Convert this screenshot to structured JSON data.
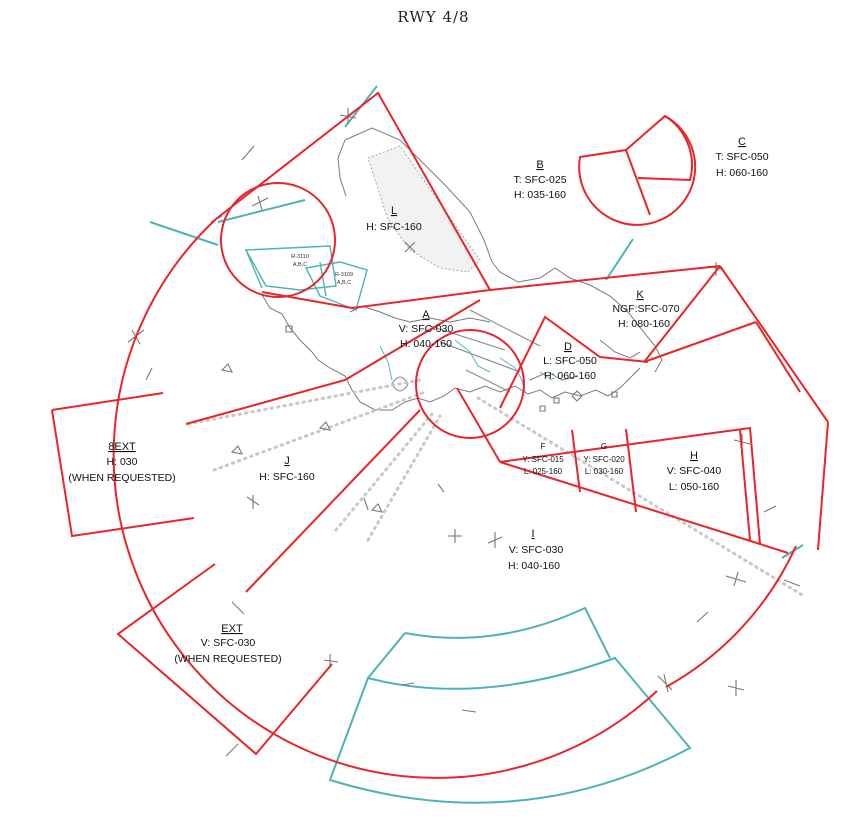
{
  "title": "RWY 4/8",
  "sectors": {
    "A": {
      "id": "A",
      "line1": "V: SFC-030",
      "line2": "H: 040-160"
    },
    "B": {
      "id": "B",
      "line1": "T: SFC-025",
      "line2": "H: 035-160"
    },
    "C": {
      "id": "C",
      "line1": "T: SFC-050",
      "line2": "H: 060-160"
    },
    "D": {
      "id": "D",
      "line1": "L: SFC-050",
      "line2": "H: 060-160"
    },
    "F": {
      "id": "F",
      "line1": "Y: SFC-015",
      "line2": "L: 025-160"
    },
    "G": {
      "id": "G",
      "line1": "Y: SFC-020",
      "line2": "L: 030-160"
    },
    "H": {
      "id": "H",
      "line1": "V: SFC-040",
      "line2": "L: 050-160"
    },
    "I": {
      "id": "I",
      "line1": "V: SFC-030",
      "line2": "H: 040-160"
    },
    "J": {
      "id": "J",
      "line1": "H: SFC-160"
    },
    "K": {
      "id": "K",
      "line1": "NGF:SFC-070",
      "line2": "H: 080-160"
    },
    "L": {
      "id": "L",
      "line1": "H: SFC-160"
    },
    "8EXT": {
      "id": "8EXT",
      "line1": "H: 030",
      "line2": "(WHEN REQUESTED)"
    },
    "EXT": {
      "id": "EXT",
      "line1": "V: SFC-030",
      "line2": "(WHEN REQUESTED)"
    }
  },
  "restricted_areas": {
    "r1": {
      "line1": "R-3110",
      "line2": "A,B,C"
    },
    "r2": {
      "line1": "R-3109",
      "line2": "A,B,C"
    }
  }
}
